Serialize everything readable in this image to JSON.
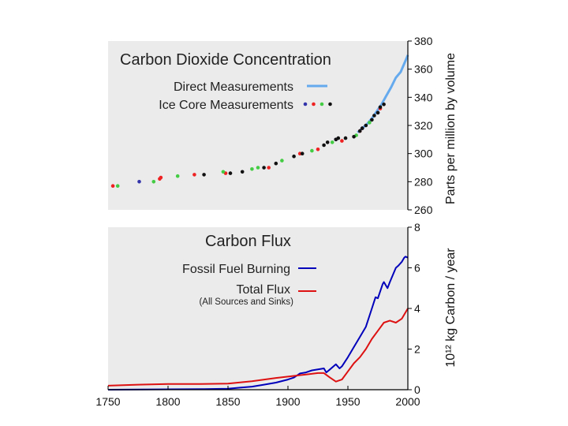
{
  "chart_data": [
    {
      "type": "scatter",
      "title": "Carbon Dioxide Concentration",
      "ylabel": "Parts per million by volume",
      "xlim": [
        1750,
        2000
      ],
      "ylim": [
        260,
        380
      ],
      "yticks": [
        260,
        280,
        300,
        320,
        340,
        360,
        380
      ],
      "grid": false,
      "legend_position": "top-left",
      "legend": [
        {
          "label": "Direct Measurements",
          "color": "#66aaee",
          "kind": "line"
        },
        {
          "label": "Ice Core Measurements",
          "colors": [
            "#3333aa",
            "#ee2222",
            "#44cc44",
            "#111111"
          ],
          "kind": "dots"
        }
      ],
      "series": [
        {
          "name": "Direct Measurements",
          "color": "#66aaee",
          "points": [
            [
              1958,
              315
            ],
            [
              1962,
              318
            ],
            [
              1966,
              321
            ],
            [
              1970,
              325
            ],
            [
              1974,
              330
            ],
            [
              1978,
              335
            ],
            [
              1982,
              341
            ],
            [
              1986,
              347
            ],
            [
              1990,
              354
            ],
            [
              1994,
              358
            ],
            [
              1998,
              366
            ],
            [
              2000,
              370
            ]
          ]
        },
        {
          "name": "Ice Core Measurements (blue)",
          "color": "#3333aa",
          "points": [
            [
              1776,
              280
            ],
            [
              1940,
              310
            ],
            [
              1962,
              318
            ],
            [
              1975,
              329
            ]
          ]
        },
        {
          "name": "Ice Core Measurements (red)",
          "color": "#ee2222",
          "points": [
            [
              1754,
              277
            ],
            [
              1793,
              282
            ],
            [
              1794,
              283
            ],
            [
              1822,
              285
            ],
            [
              1848,
              286
            ],
            [
              1884,
              290
            ],
            [
              1910,
              300
            ],
            [
              1925,
              303
            ],
            [
              1945,
              309
            ],
            [
              1960,
              316
            ],
            [
              1977,
              332
            ]
          ]
        },
        {
          "name": "Ice Core Measurements (green)",
          "color": "#44cc44",
          "points": [
            [
              1758,
              277
            ],
            [
              1788,
              280
            ],
            [
              1808,
              284
            ],
            [
              1846,
              287
            ],
            [
              1870,
              289
            ],
            [
              1875,
              290
            ],
            [
              1895,
              295
            ],
            [
              1920,
              302
            ],
            [
              1937,
              308
            ],
            [
              1957,
              313
            ],
            [
              1968,
              322
            ]
          ]
        },
        {
          "name": "Ice Core Measurements (black)",
          "color": "#111111",
          "points": [
            [
              1830,
              285
            ],
            [
              1852,
              286
            ],
            [
              1862,
              287
            ],
            [
              1880,
              290
            ],
            [
              1890,
              293
            ],
            [
              1905,
              298
            ],
            [
              1912,
              300
            ],
            [
              1930,
              306
            ],
            [
              1933,
              308
            ],
            [
              1940,
              310
            ],
            [
              1942,
              311
            ],
            [
              1948,
              311
            ],
            [
              1955,
              312
            ],
            [
              1960,
              316
            ],
            [
              1962,
              318
            ],
            [
              1965,
              320
            ],
            [
              1970,
              324
            ],
            [
              1972,
              327
            ],
            [
              1975,
              329
            ],
            [
              1977,
              333
            ],
            [
              1980,
              335
            ]
          ]
        }
      ]
    },
    {
      "type": "line",
      "title": "Carbon Flux",
      "ylabel": "10¹² kg Carbon / year",
      "xlabel": "",
      "xlim": [
        1750,
        2000
      ],
      "ylim": [
        0,
        8
      ],
      "xticks": [
        1750,
        1800,
        1850,
        1900,
        1950,
        2000
      ],
      "yticks": [
        0,
        2,
        4,
        6,
        8
      ],
      "grid": false,
      "legend_position": "top-left",
      "legend": [
        {
          "label": "Fossil Fuel Burning",
          "color": "#0000bb"
        },
        {
          "label": "Total Flux",
          "color": "#dd1111",
          "note": "(All Sources and Sinks)"
        }
      ],
      "series": [
        {
          "name": "Fossil Fuel Burning",
          "color": "#0000bb",
          "points": [
            [
              1750,
              0
            ],
            [
              1800,
              0.02
            ],
            [
              1830,
              0.03
            ],
            [
              1850,
              0.05
            ],
            [
              1860,
              0.1
            ],
            [
              1870,
              0.15
            ],
            [
              1880,
              0.25
            ],
            [
              1890,
              0.35
            ],
            [
              1900,
              0.5
            ],
            [
              1905,
              0.6
            ],
            [
              1910,
              0.8
            ],
            [
              1915,
              0.85
            ],
            [
              1920,
              0.95
            ],
            [
              1925,
              1.0
            ],
            [
              1930,
              1.05
            ],
            [
              1932,
              0.85
            ],
            [
              1935,
              1.0
            ],
            [
              1940,
              1.25
            ],
            [
              1943,
              1.05
            ],
            [
              1945,
              1.15
            ],
            [
              1950,
              1.6
            ],
            [
              1955,
              2.1
            ],
            [
              1960,
              2.6
            ],
            [
              1965,
              3.1
            ],
            [
              1970,
              4.0
            ],
            [
              1973,
              4.55
            ],
            [
              1975,
              4.5
            ],
            [
              1979,
              5.2
            ],
            [
              1980,
              5.3
            ],
            [
              1983,
              5.0
            ],
            [
              1985,
              5.3
            ],
            [
              1990,
              6.0
            ],
            [
              1992,
              6.1
            ],
            [
              1995,
              6.3
            ],
            [
              1997,
              6.5
            ],
            [
              1998,
              6.55
            ],
            [
              2000,
              6.5
            ]
          ]
        },
        {
          "name": "Total Flux",
          "color": "#dd1111",
          "points": [
            [
              1750,
              0.2
            ],
            [
              1775,
              0.25
            ],
            [
              1800,
              0.28
            ],
            [
              1825,
              0.28
            ],
            [
              1850,
              0.3
            ],
            [
              1870,
              0.42
            ],
            [
              1890,
              0.58
            ],
            [
              1905,
              0.68
            ],
            [
              1915,
              0.75
            ],
            [
              1925,
              0.82
            ],
            [
              1930,
              0.82
            ],
            [
              1935,
              0.6
            ],
            [
              1940,
              0.4
            ],
            [
              1945,
              0.5
            ],
            [
              1950,
              0.9
            ],
            [
              1955,
              1.3
            ],
            [
              1960,
              1.6
            ],
            [
              1965,
              2.0
            ],
            [
              1970,
              2.5
            ],
            [
              1975,
              2.9
            ],
            [
              1980,
              3.3
            ],
            [
              1985,
              3.4
            ],
            [
              1990,
              3.3
            ],
            [
              1995,
              3.5
            ],
            [
              2000,
              4.0
            ]
          ]
        }
      ]
    }
  ]
}
